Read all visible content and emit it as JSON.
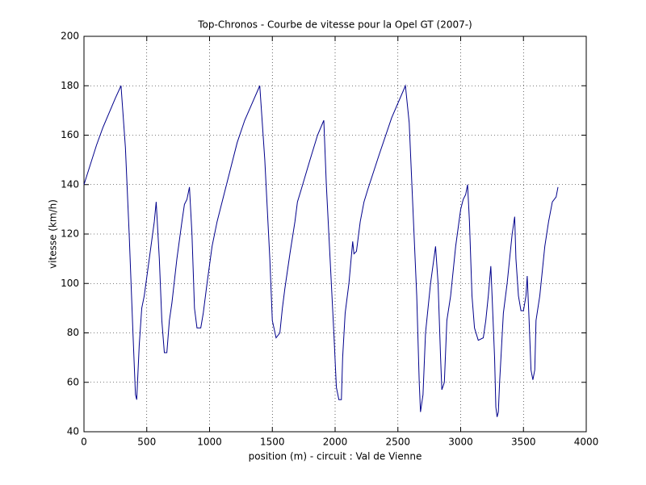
{
  "chart_data": {
    "type": "line",
    "title": "Top-Chronos - Courbe de vitesse pour la Opel GT (2007-)",
    "xlabel": "position (m) - circuit : Val de Vienne",
    "ylabel": "vitesse (km/h)",
    "color": "#00008b",
    "grid": true,
    "xlim": [
      0,
      4000
    ],
    "xticks": [
      0,
      500,
      1000,
      1500,
      2000,
      2500,
      3000,
      3500,
      4000
    ],
    "ylim": [
      40,
      200
    ],
    "yticks": [
      40,
      60,
      80,
      100,
      120,
      140,
      160,
      180,
      200
    ],
    "x": [
      0,
      50,
      100,
      150,
      200,
      250,
      295,
      330,
      360,
      390,
      410,
      420,
      440,
      460,
      480,
      520,
      560,
      575,
      600,
      620,
      640,
      660,
      680,
      700,
      740,
      780,
      800,
      820,
      840,
      860,
      880,
      900,
      930,
      950,
      980,
      1020,
      1060,
      1100,
      1160,
      1220,
      1280,
      1340,
      1400,
      1440,
      1480,
      1500,
      1530,
      1560,
      1580,
      1600,
      1640,
      1680,
      1700,
      1730,
      1800,
      1860,
      1910,
      1930,
      1960,
      1990,
      2010,
      2030,
      2050,
      2060,
      2080,
      2110,
      2140,
      2150,
      2170,
      2200,
      2230,
      2260,
      2350,
      2450,
      2560,
      2590,
      2620,
      2650,
      2670,
      2680,
      2700,
      2720,
      2760,
      2800,
      2820,
      2840,
      2850,
      2870,
      2890,
      2920,
      2960,
      3000,
      3020,
      3040,
      3055,
      3070,
      3090,
      3110,
      3140,
      3180,
      3200,
      3220,
      3240,
      3250,
      3270,
      3280,
      3290,
      3300,
      3310,
      3340,
      3370,
      3410,
      3430,
      3440,
      3460,
      3480,
      3500,
      3520,
      3530,
      3545,
      3560,
      3575,
      3590,
      3600,
      3630,
      3670,
      3700,
      3730,
      3760,
      3775
    ],
    "values": [
      140,
      148,
      156,
      163,
      169,
      175,
      180,
      155,
      120,
      80,
      55,
      53,
      75,
      90,
      95,
      110,
      125,
      133,
      110,
      85,
      72,
      72,
      85,
      92,
      110,
      125,
      132,
      134,
      139,
      120,
      90,
      82,
      82,
      88,
      100,
      115,
      125,
      133,
      145,
      157,
      166,
      173,
      180,
      150,
      110,
      85,
      78,
      80,
      90,
      98,
      112,
      125,
      133,
      138,
      150,
      160,
      166,
      140,
      110,
      80,
      58,
      53,
      53,
      70,
      88,
      100,
      117,
      112,
      113,
      125,
      133,
      138,
      152,
      167,
      180,
      165,
      130,
      95,
      60,
      48,
      55,
      80,
      100,
      115,
      100,
      70,
      57,
      60,
      85,
      95,
      115,
      130,
      134,
      136,
      140,
      125,
      95,
      82,
      77,
      78,
      85,
      95,
      107,
      95,
      70,
      50,
      46,
      48,
      60,
      88,
      100,
      120,
      127,
      110,
      95,
      89,
      89,
      95,
      103,
      85,
      65,
      61,
      65,
      85,
      95,
      115,
      125,
      133,
      135,
      139
    ]
  }
}
